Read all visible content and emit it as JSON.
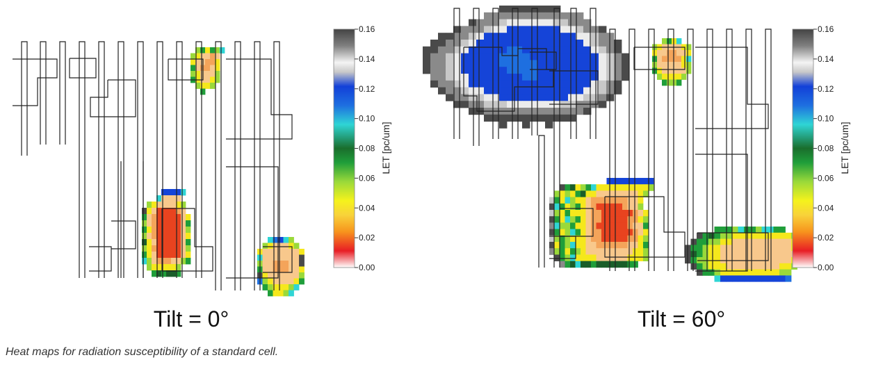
{
  "caption": "Heat maps for radiation susceptibility of a standard cell.",
  "colors": {
    "outline": "#222222",
    "gradient": [
      "#ffffff",
      "#e81e25",
      "#f7941d",
      "#f8d23a",
      "#f5f21c",
      "#9ad93a",
      "#1f9e3a",
      "#1a6e2c",
      "#2fd5d5",
      "#1e6fe0",
      "#1240d8",
      "#c0c0c0",
      "#f0f0f0",
      "#808080",
      "#444444"
    ]
  },
  "chart_data": [
    {
      "type": "heatmap",
      "title": "Tilt = 0°",
      "colorbar": {
        "label": "LET [pc/um]",
        "range": [
          0,
          0.16
        ],
        "ticks": [
          "0.00",
          "0.02",
          "0.04",
          "0.06",
          "0.08",
          "0.10",
          "0.12",
          "0.14",
          "0.16"
        ]
      },
      "regions": [
        {
          "name": "top-right-hotspot",
          "min_let": 0.03
        },
        {
          "name": "lower-center-hotspot",
          "min_let": 0.02
        },
        {
          "name": "lower-right-hotspot",
          "min_let": 0.03
        }
      ]
    },
    {
      "type": "heatmap",
      "title": "Tilt = 60°",
      "colorbar": {
        "label": "LET [pc/um]",
        "range": [
          0,
          0.16
        ],
        "ticks": [
          "0.00",
          "0.02",
          "0.04",
          "0.06",
          "0.08",
          "0.10",
          "0.12",
          "0.14",
          "0.16"
        ]
      },
      "regions": [
        {
          "name": "top-left-blob",
          "min_let": 0.11
        },
        {
          "name": "top-center-hotspot",
          "min_let": 0.03
        },
        {
          "name": "lower-center-hotspot",
          "min_let": 0.02
        },
        {
          "name": "lower-right-hotspot",
          "min_let": 0.03
        }
      ]
    }
  ]
}
